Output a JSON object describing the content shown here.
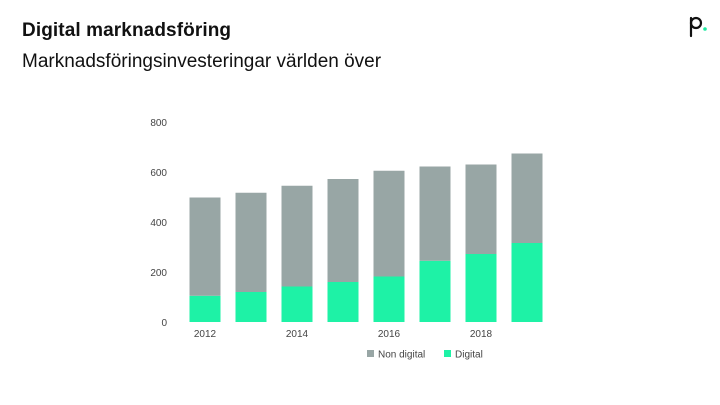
{
  "slide": {
    "title": "Digital marknadsföring",
    "subtitle": "Marknadsföringsinvesteringar världen över"
  },
  "logo": {
    "icon": "p-logo-icon",
    "accent_color": "#1de9a0"
  },
  "colors": {
    "non_digital": "#98a6a5",
    "digital": "#1ef2a6"
  },
  "chart_data": {
    "type": "bar",
    "stacked": true,
    "title": "Marknadsföringsinvesteringar världen över",
    "categories": [
      "2012",
      "2013",
      "2014",
      "2015",
      "2016",
      "2017",
      "2018",
      "2019"
    ],
    "x_tick_labels": [
      "2012",
      "",
      "2014",
      "",
      "2016",
      "",
      "2018",
      ""
    ],
    "series": [
      {
        "name": "Digital",
        "values": [
          105,
          120,
          142,
          160,
          182,
          245,
          272,
          316
        ]
      },
      {
        "name": "Non digital",
        "values": [
          393,
          397,
          403,
          412,
          423,
          377,
          358,
          358
        ]
      }
    ],
    "y_ticks": [
      "0",
      "200",
      "400",
      "600",
      "800"
    ],
    "ylim": [
      0,
      800
    ],
    "xlabel": "",
    "ylabel": "",
    "legend": [
      "Non digital",
      "Digital"
    ],
    "legend_position": "bottom",
    "grid": false
  }
}
